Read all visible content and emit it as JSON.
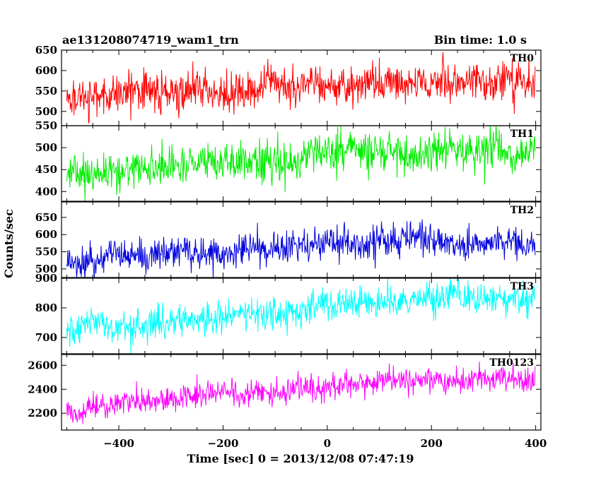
{
  "header": {
    "title": "ae131208074719_wam1_trn",
    "bin_time": "Bin time: 1.0 s"
  },
  "chart_data": {
    "type": "line",
    "title": "ae131208074719_wam1_trn",
    "subtitle": "Bin time: 1.0 s",
    "xlabel": "Time [sec] 0 = 2013/12/08 07:47:19",
    "ylabel": "Counts/sec",
    "xlim": [
      -510,
      410
    ],
    "x_ticks": [
      -400,
      -200,
      0,
      200,
      400
    ],
    "x_tick_labels": [
      "−400",
      "−200",
      "0",
      "200",
      "400"
    ],
    "x_start": -500,
    "x_end": 399,
    "x_step": 1,
    "grid": false,
    "legend": "none",
    "panels": [
      {
        "label": "TH0",
        "color": "#ff0000",
        "ylim": [
          465,
          650
        ],
        "y_ticks": [
          500,
          550,
          600,
          650
        ],
        "trend_start": 535,
        "trend_end": 575,
        "noise_sd": 24
      },
      {
        "label": "TH1",
        "color": "#00ee00",
        "ylim": [
          378,
          550
        ],
        "y_ticks": [
          400,
          450,
          500,
          550
        ],
        "trend_start": 440,
        "trend_end": 490,
        "noise_sd": 22
      },
      {
        "label": "TH2",
        "color": "#0000dd",
        "ylim": [
          475,
          695
        ],
        "y_ticks": [
          500,
          550,
          600,
          650
        ],
        "trend_start": 525,
        "trend_end": 580,
        "noise_sd": 24
      },
      {
        "label": "TH3",
        "color": "#00ffff",
        "ylim": [
          645,
          900
        ],
        "y_ticks": [
          700,
          800,
          900
        ],
        "trend_start": 715,
        "trend_end": 830,
        "noise_sd": 28
      },
      {
        "label": "TH0123",
        "color": "#ff00ff",
        "ylim": [
          2060,
          2690
        ],
        "y_ticks": [
          2200,
          2400,
          2600
        ],
        "trend_start": 2230,
        "trend_end": 2480,
        "noise_sd": 55
      }
    ]
  }
}
